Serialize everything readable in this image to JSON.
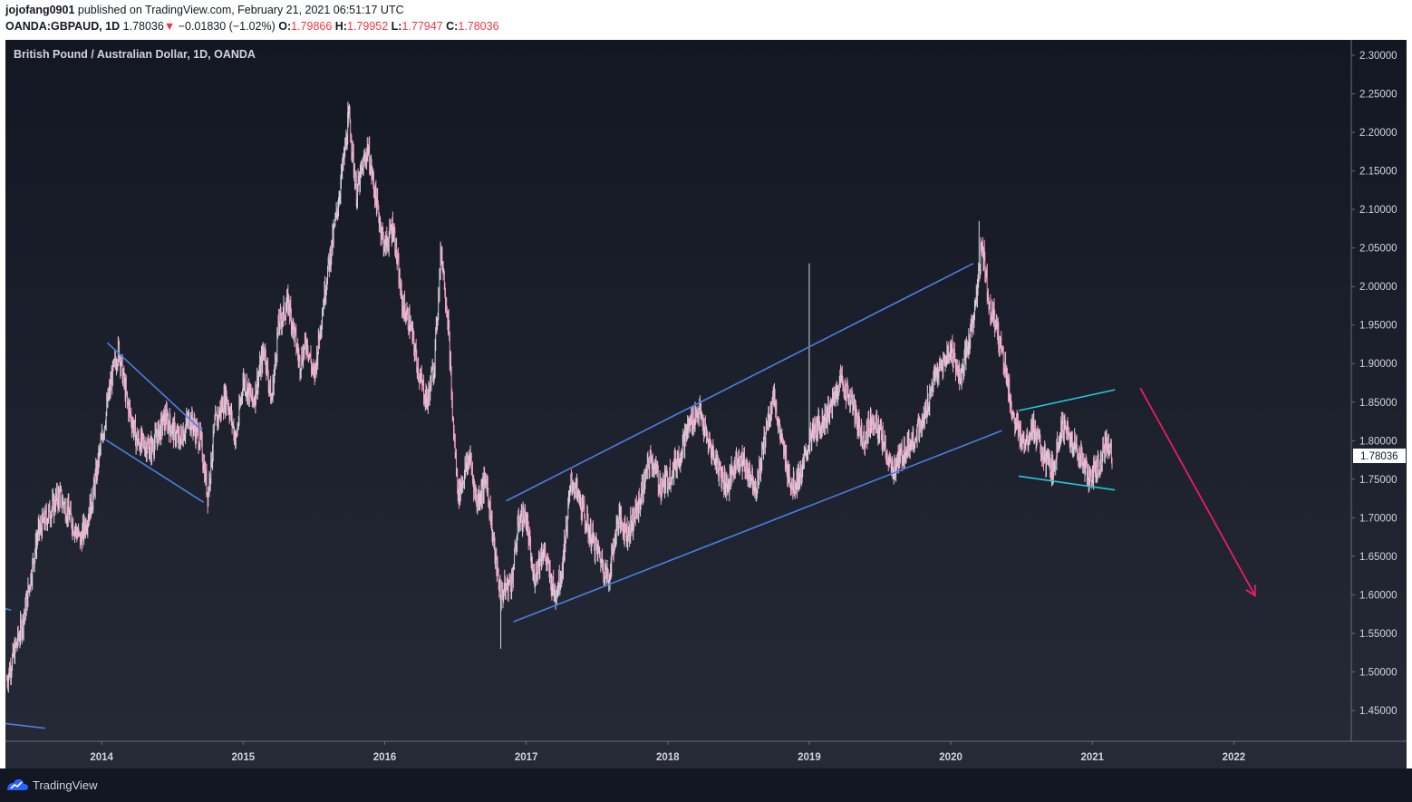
{
  "header": {
    "author": "jojofang0901",
    "published_text": "published on TradingView.com, February 21, 2021 06:51:17 UTC",
    "symbol": "OANDA:GBPAUD, 1D",
    "last": "1.78036",
    "change_arrow": "▼",
    "change": "−0.01830 (−1.02%)",
    "open_label": "O:",
    "open": "1.79866",
    "high_label": "H:",
    "high": "1.79952",
    "low_label": "L:",
    "low": "1.77947",
    "close_label": "C:",
    "close": "1.78036"
  },
  "chart_title": "British Pound / Australian Dollar, 1D, OANDA",
  "price_tag": "1.78036",
  "footer": {
    "brand": "TradingView"
  },
  "colors": {
    "background": "#1e222d",
    "up_candle": "#d1d4dc",
    "down_candle": "#f7a1c4",
    "trendline_blue": "#4a7fe0",
    "trendline_cyan": "#26c6da",
    "arrow_pink": "#e91e63",
    "axis_text": "#d1d4dc"
  },
  "chart_data": {
    "type": "candlestick",
    "title": "British Pound / Australian Dollar, 1D, OANDA",
    "ylim": [
      1.41,
      2.32
    ],
    "y_ticks": [
      "2.30000",
      "2.25000",
      "2.20000",
      "2.15000",
      "2.10000",
      "2.05000",
      "2.00000",
      "1.95000",
      "1.90000",
      "1.85000",
      "1.80000",
      "1.75000",
      "1.70000",
      "1.65000",
      "1.60000",
      "1.55000",
      "1.50000",
      "1.45000"
    ],
    "x_ticks": [
      "2014",
      "2015",
      "2016",
      "2017",
      "2018",
      "2019",
      "2020",
      "2021",
      "2022"
    ],
    "x_tick_values": [
      2014.0,
      2015.0,
      2016.0,
      2017.0,
      2018.0,
      2019.0,
      2020.0,
      2021.0,
      2022.0
    ],
    "xlim": [
      2013.32,
      2022.83
    ],
    "price_path": [
      [
        2013.33,
        1.49
      ],
      [
        2013.45,
        1.57
      ],
      [
        2013.55,
        1.68
      ],
      [
        2013.7,
        1.73
      ],
      [
        2013.78,
        1.7
      ],
      [
        2013.85,
        1.67
      ],
      [
        2013.93,
        1.72
      ],
      [
        2014.0,
        1.8
      ],
      [
        2014.07,
        1.88
      ],
      [
        2014.12,
        1.92
      ],
      [
        2014.18,
        1.85
      ],
      [
        2014.25,
        1.8
      ],
      [
        2014.35,
        1.79
      ],
      [
        2014.45,
        1.83
      ],
      [
        2014.55,
        1.8
      ],
      [
        2014.62,
        1.83
      ],
      [
        2014.7,
        1.8
      ],
      [
        2014.75,
        1.73
      ],
      [
        2014.8,
        1.82
      ],
      [
        2014.88,
        1.86
      ],
      [
        2014.95,
        1.8
      ],
      [
        2015.0,
        1.88
      ],
      [
        2015.07,
        1.85
      ],
      [
        2015.15,
        1.92
      ],
      [
        2015.2,
        1.85
      ],
      [
        2015.25,
        1.95
      ],
      [
        2015.32,
        1.98
      ],
      [
        2015.4,
        1.9
      ],
      [
        2015.45,
        1.93
      ],
      [
        2015.5,
        1.88
      ],
      [
        2015.58,
        2.0
      ],
      [
        2015.65,
        2.08
      ],
      [
        2015.7,
        2.15
      ],
      [
        2015.75,
        2.22
      ],
      [
        2015.8,
        2.12
      ],
      [
        2015.88,
        2.18
      ],
      [
        2015.95,
        2.1
      ],
      [
        2016.0,
        2.05
      ],
      [
        2016.06,
        2.08
      ],
      [
        2016.12,
        1.98
      ],
      [
        2016.18,
        1.95
      ],
      [
        2016.25,
        1.88
      ],
      [
        2016.3,
        1.85
      ],
      [
        2016.35,
        1.9
      ],
      [
        2016.4,
        2.05
      ],
      [
        2016.45,
        1.95
      ],
      [
        2016.48,
        1.83
      ],
      [
        2016.52,
        1.73
      ],
      [
        2016.6,
        1.78
      ],
      [
        2016.65,
        1.72
      ],
      [
        2016.72,
        1.75
      ],
      [
        2016.78,
        1.65
      ],
      [
        2016.82,
        1.6
      ],
      [
        2016.9,
        1.62
      ],
      [
        2016.95,
        1.7
      ],
      [
        2017.0,
        1.7
      ],
      [
        2017.05,
        1.62
      ],
      [
        2017.12,
        1.66
      ],
      [
        2017.2,
        1.6
      ],
      [
        2017.25,
        1.63
      ],
      [
        2017.32,
        1.75
      ],
      [
        2017.38,
        1.72
      ],
      [
        2017.45,
        1.68
      ],
      [
        2017.52,
        1.65
      ],
      [
        2017.58,
        1.62
      ],
      [
        2017.65,
        1.7
      ],
      [
        2017.72,
        1.68
      ],
      [
        2017.8,
        1.72
      ],
      [
        2017.88,
        1.78
      ],
      [
        2017.95,
        1.74
      ],
      [
        2018.0,
        1.75
      ],
      [
        2018.08,
        1.78
      ],
      [
        2018.15,
        1.82
      ],
      [
        2018.22,
        1.84
      ],
      [
        2018.28,
        1.8
      ],
      [
        2018.35,
        1.77
      ],
      [
        2018.42,
        1.74
      ],
      [
        2018.5,
        1.78
      ],
      [
        2018.57,
        1.76
      ],
      [
        2018.63,
        1.74
      ],
      [
        2018.7,
        1.82
      ],
      [
        2018.75,
        1.86
      ],
      [
        2018.8,
        1.8
      ],
      [
        2018.88,
        1.74
      ],
      [
        2018.95,
        1.76
      ],
      [
        2019.0,
        1.8
      ],
      [
        2019.07,
        1.82
      ],
      [
        2019.15,
        1.84
      ],
      [
        2019.22,
        1.88
      ],
      [
        2019.3,
        1.85
      ],
      [
        2019.38,
        1.8
      ],
      [
        2019.45,
        1.83
      ],
      [
        2019.52,
        1.8
      ],
      [
        2019.58,
        1.76
      ],
      [
        2019.65,
        1.78
      ],
      [
        2019.72,
        1.8
      ],
      [
        2019.8,
        1.82
      ],
      [
        2019.88,
        1.88
      ],
      [
        2019.95,
        1.9
      ],
      [
        2020.0,
        1.92
      ],
      [
        2020.07,
        1.88
      ],
      [
        2020.12,
        1.92
      ],
      [
        2020.18,
        1.98
      ],
      [
        2020.22,
        2.06
      ],
      [
        2020.27,
        1.98
      ],
      [
        2020.32,
        1.95
      ],
      [
        2020.38,
        1.9
      ],
      [
        2020.45,
        1.82
      ],
      [
        2020.52,
        1.8
      ],
      [
        2020.58,
        1.82
      ],
      [
        2020.65,
        1.78
      ],
      [
        2020.72,
        1.76
      ],
      [
        2020.78,
        1.82
      ],
      [
        2020.85,
        1.8
      ],
      [
        2020.92,
        1.78
      ],
      [
        2020.98,
        1.75
      ],
      [
        2021.05,
        1.77
      ],
      [
        2021.1,
        1.8
      ],
      [
        2021.14,
        1.78
      ]
    ],
    "wick_spikes": [
      {
        "x": 2015.74,
        "high": 2.24
      },
      {
        "x": 2016.82,
        "low": 1.53
      },
      {
        "x": 2019.0,
        "high": 2.03
      },
      {
        "x": 2020.2,
        "high": 2.085
      }
    ],
    "drawings": [
      {
        "kind": "trendline",
        "color": "blue",
        "from": [
          2013.3,
          1.583
        ],
        "to": [
          2013.36,
          1.58
        ]
      },
      {
        "kind": "trendline",
        "color": "blue",
        "from": [
          2013.32,
          1.433
        ],
        "to": [
          2013.6,
          1.427
        ]
      },
      {
        "kind": "trendline",
        "color": "blue",
        "from": [
          2014.04,
          1.927
        ],
        "to": [
          2014.71,
          1.813
        ]
      },
      {
        "kind": "trendline",
        "color": "blue",
        "from": [
          2014.03,
          1.801
        ],
        "to": [
          2014.72,
          1.72
        ]
      },
      {
        "kind": "trendline",
        "color": "blue",
        "from": [
          2016.86,
          1.722
        ],
        "to": [
          2020.16,
          2.03
        ]
      },
      {
        "kind": "trendline",
        "color": "blue",
        "from": [
          2016.91,
          1.565
        ],
        "to": [
          2020.36,
          1.813
        ]
      },
      {
        "kind": "trendline",
        "color": "cyan",
        "from": [
          2020.48,
          1.839
        ],
        "to": [
          2021.16,
          1.866
        ]
      },
      {
        "kind": "trendline",
        "color": "cyan",
        "from": [
          2020.48,
          1.754
        ],
        "to": [
          2021.16,
          1.736
        ]
      },
      {
        "kind": "arrow",
        "color": "pink",
        "from": [
          2021.34,
          1.868
        ],
        "to": [
          2022.15,
          1.599
        ]
      }
    ]
  }
}
